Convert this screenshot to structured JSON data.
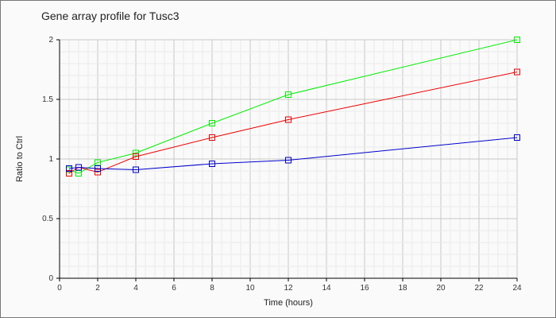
{
  "chart_data": {
    "type": "line",
    "title": "Gene array profile for Tusc3",
    "xlabel": "Time (hours)",
    "ylabel": "Ratio to Ctrl",
    "xlim": [
      0,
      24
    ],
    "ylim": [
      0,
      2
    ],
    "xticks": [
      "0",
      "2",
      "4",
      "6",
      "8",
      "10",
      "12",
      "14",
      "16",
      "18",
      "20",
      "22",
      "24"
    ],
    "yticks": [
      "0",
      "0.5",
      "1",
      "1.5",
      "2"
    ],
    "grid": true,
    "x": [
      0.5,
      1,
      2,
      4,
      8,
      12,
      24
    ],
    "series": [
      {
        "color": "#00ee00",
        "values": [
          0.91,
          0.88,
          0.97,
          1.05,
          1.3,
          1.54,
          2.0
        ]
      },
      {
        "color": "#ee0000",
        "values": [
          0.88,
          0.93,
          0.89,
          1.02,
          1.18,
          1.33,
          1.73
        ]
      },
      {
        "color": "#0000cc",
        "values": [
          0.92,
          0.93,
          0.92,
          0.91,
          0.96,
          0.99,
          1.18
        ]
      }
    ],
    "marker": "square"
  }
}
